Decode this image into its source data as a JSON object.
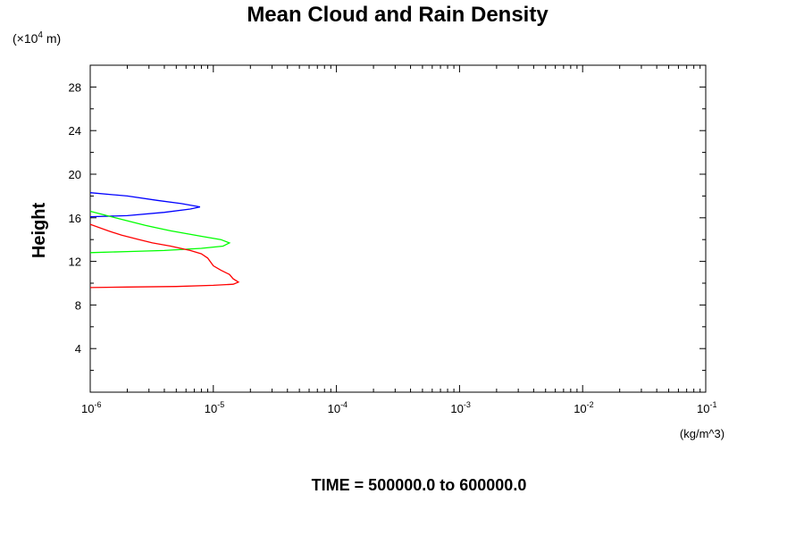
{
  "chart_data": {
    "type": "line",
    "title": "Mean Cloud and Rain Density",
    "ylabel": "Height",
    "y_unit_prefix": "(×10",
    "y_unit_exponent": "4",
    "y_unit_suffix": " m)",
    "xlabel": "(kg/m^3)",
    "footer": "TIME = 500000.0 to 600000.0",
    "x_scale": "log",
    "xlim": [
      1e-06,
      0.1
    ],
    "ylim": [
      0,
      30
    ],
    "y_ticks": [
      4,
      8,
      12,
      16,
      20,
      24,
      28
    ],
    "y_tick_labels": [
      "4",
      "8",
      "12",
      "16",
      "20",
      "24",
      "28"
    ],
    "x_ticks": [
      {
        "value": 1e-06,
        "base": "10",
        "exp": "-6"
      },
      {
        "value": 1e-05,
        "base": "10",
        "exp": "-5"
      },
      {
        "value": 0.0001,
        "base": "10",
        "exp": "-4"
      },
      {
        "value": 0.001,
        "base": "10",
        "exp": "-3"
      },
      {
        "value": 0.01,
        "base": "10",
        "exp": "-2"
      },
      {
        "value": 0.1,
        "base": "10",
        "exp": "-1"
      }
    ],
    "grid": false,
    "series": [
      {
        "color": "#0000ff",
        "points": [
          [
            1e-06,
            18.3
          ],
          [
            2e-06,
            18.0
          ],
          [
            3.5e-06,
            17.6
          ],
          [
            5.5e-06,
            17.3
          ],
          [
            7.8e-06,
            17.0
          ],
          [
            6.5e-06,
            16.8
          ],
          [
            4e-06,
            16.5
          ],
          [
            2e-06,
            16.2
          ],
          [
            1e-06,
            16.1
          ]
        ]
      },
      {
        "color": "#00ff00",
        "points": [
          [
            1e-06,
            16.6
          ],
          [
            1.6e-06,
            16.0
          ],
          [
            2.8e-06,
            15.3
          ],
          [
            4.5e-06,
            14.8
          ],
          [
            8e-06,
            14.3
          ],
          [
            1.15e-05,
            14.0
          ],
          [
            1.35e-05,
            13.7
          ],
          [
            1.2e-05,
            13.4
          ],
          [
            8e-06,
            13.2
          ],
          [
            4e-06,
            13.0
          ],
          [
            2e-06,
            12.9
          ],
          [
            1e-06,
            12.8
          ]
        ]
      },
      {
        "color": "#ff0000",
        "points": [
          [
            1e-06,
            15.4
          ],
          [
            1.4e-06,
            14.8
          ],
          [
            1.8e-06,
            14.4
          ],
          [
            2.5e-06,
            14.0
          ],
          [
            3.2e-06,
            13.7
          ],
          [
            4.5e-06,
            13.4
          ],
          [
            6.5e-06,
            13.0
          ],
          [
            8e-06,
            12.7
          ],
          [
            9e-06,
            12.3
          ],
          [
            1e-05,
            11.6
          ],
          [
            1.15e-05,
            11.2
          ],
          [
            1.35e-05,
            10.8
          ],
          [
            1.45e-05,
            10.4
          ],
          [
            1.6e-05,
            10.1
          ],
          [
            1.45e-05,
            9.9
          ],
          [
            1e-05,
            9.8
          ],
          [
            5e-06,
            9.7
          ],
          [
            2e-06,
            9.65
          ],
          [
            1e-06,
            9.6
          ]
        ]
      }
    ]
  }
}
